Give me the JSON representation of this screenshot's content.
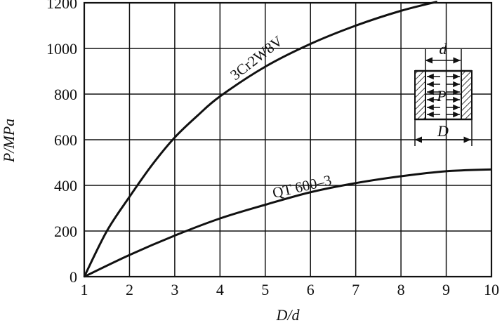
{
  "chart_data": {
    "type": "line",
    "xlabel": "D/d",
    "ylabel": "P/MPa",
    "xlim": [
      1,
      10
    ],
    "ylim": [
      0,
      1200
    ],
    "x_ticks": [
      1,
      2,
      3,
      4,
      5,
      6,
      7,
      8,
      9,
      10
    ],
    "y_ticks": [
      0,
      200,
      400,
      600,
      800,
      1000,
      1200
    ],
    "grid": true,
    "series": [
      {
        "name": "3Cr2W8V",
        "x": [
          1,
          1.5,
          2,
          2.5,
          3,
          3.5,
          4,
          5,
          6,
          7,
          8,
          8.8
        ],
        "y": [
          0,
          200,
          350,
          490,
          610,
          705,
          790,
          920,
          1020,
          1100,
          1165,
          1205
        ]
      },
      {
        "name": "QT 600–3",
        "x": [
          1,
          2,
          3,
          4,
          5,
          6,
          7,
          8,
          9,
          10
        ],
        "y": [
          0,
          95,
          180,
          255,
          315,
          370,
          410,
          440,
          462,
          470
        ]
      }
    ],
    "inset": {
      "labels": [
        "d",
        "P",
        "D"
      ]
    }
  }
}
